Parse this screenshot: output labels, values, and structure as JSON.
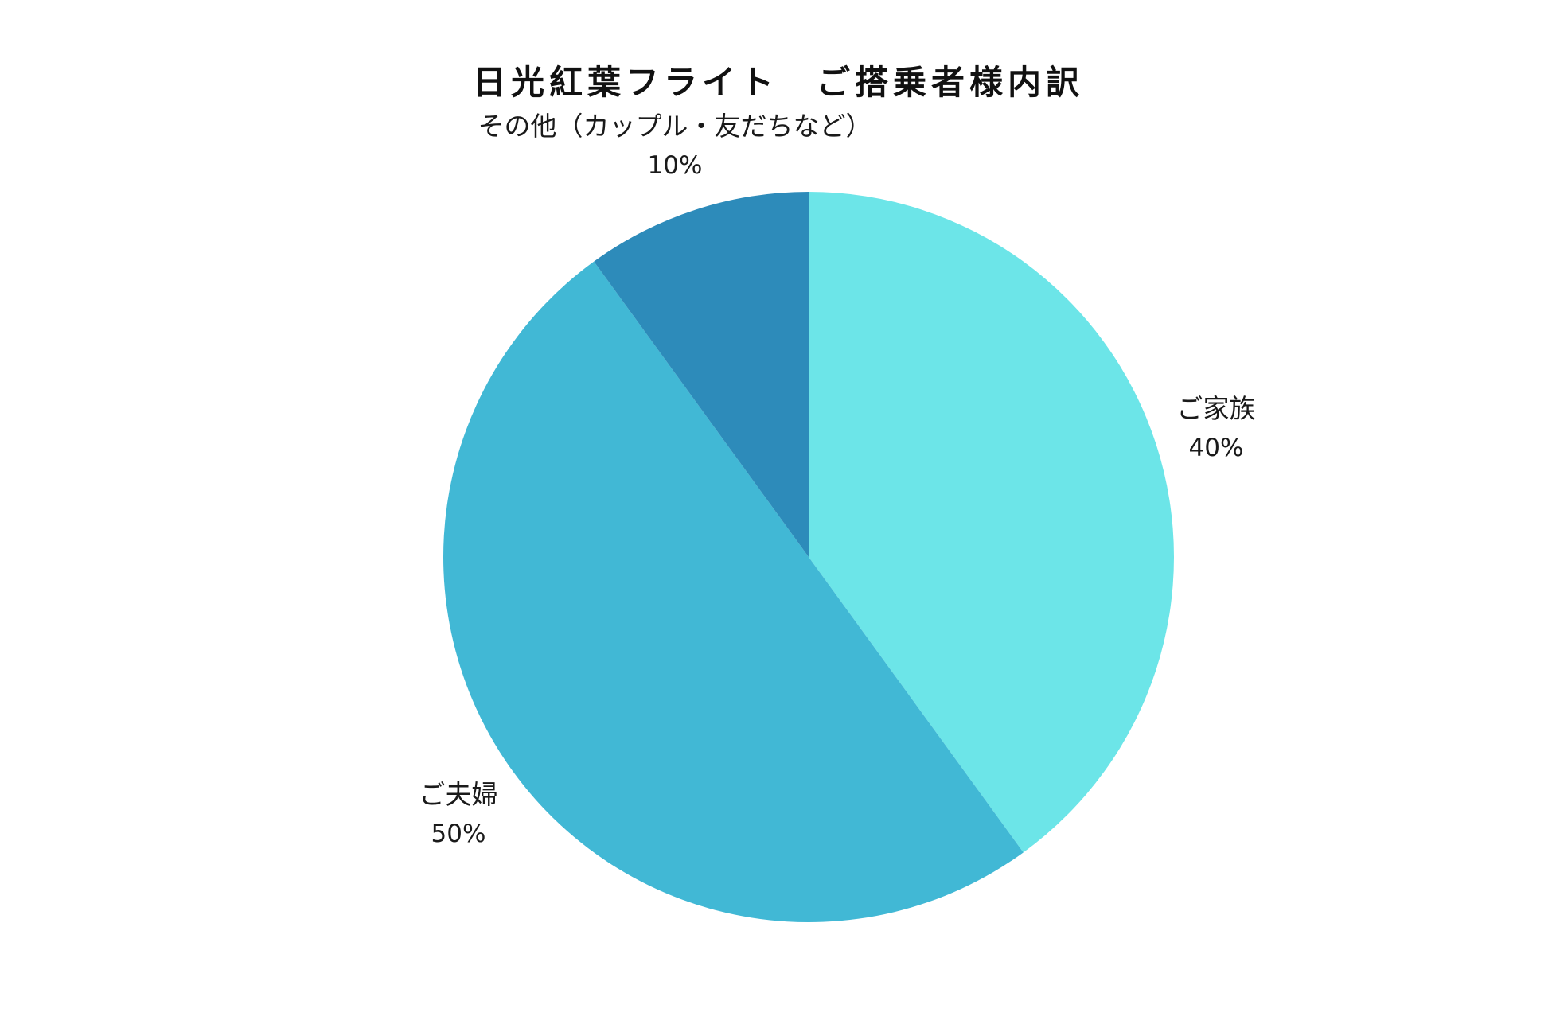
{
  "chart_data": {
    "type": "pie",
    "title": "日光紅葉フライト　ご搭乗者様内訳",
    "start_angle_deg": 0,
    "direction": "clockwise",
    "legend": "none",
    "slices": [
      {
        "label": "ご家族",
        "value": 40,
        "value_label": "40%",
        "color": "#6CE5E8"
      },
      {
        "label": "ご夫婦",
        "value": 50,
        "value_label": "50%",
        "color": "#41B8D5"
      },
      {
        "label": "その他（カップル・友だちなど）",
        "value": 10,
        "value_label": "10%",
        "color": "#2D8BBA"
      }
    ]
  }
}
